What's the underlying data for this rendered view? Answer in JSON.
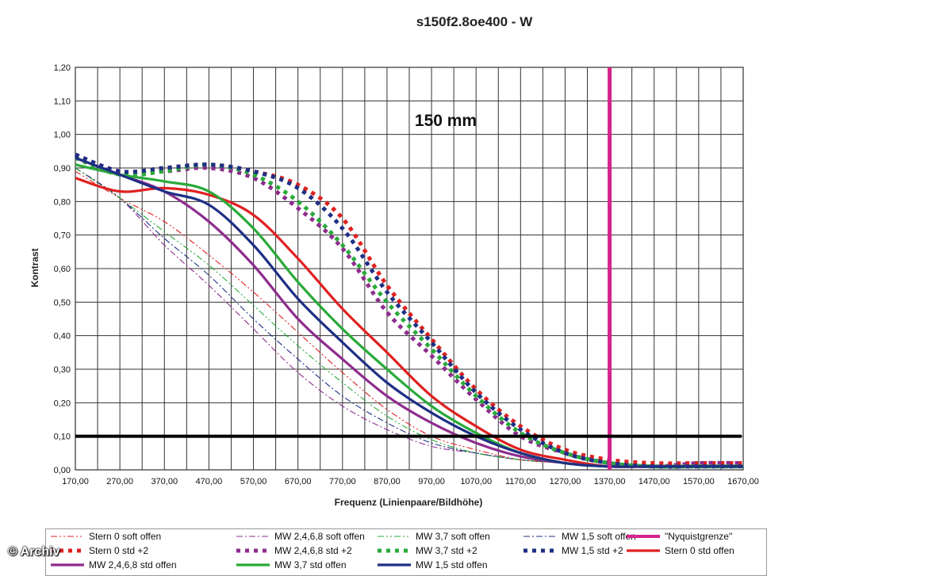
{
  "chart_data": {
    "type": "line",
    "title": "s150f2.8oe400 - W",
    "annotation": "150 mm",
    "xlabel": "Frequenz (Linienpaare/Bildhöhe)",
    "ylabel": "Kontrast",
    "xlim": [
      170,
      1670
    ],
    "ylim": [
      0,
      1.2
    ],
    "xticks": [
      "170,00",
      "270,00",
      "370,00",
      "470,00",
      "570,00",
      "670,00",
      "770,00",
      "870,00",
      "970,00",
      "1070,00",
      "1170,00",
      "1270,00",
      "1370,00",
      "1470,00",
      "1570,00",
      "1670,00"
    ],
    "yticks": [
      "0,00",
      "0,10",
      "0,20",
      "0,30",
      "0,40",
      "0,50",
      "0,60",
      "0,70",
      "0,80",
      "0,90",
      "1,00",
      "1,10",
      "1,20"
    ],
    "x": [
      170,
      270,
      370,
      470,
      570,
      670,
      770,
      870,
      970,
      1070,
      1170,
      1270,
      1370,
      1470,
      1570,
      1670
    ],
    "series": [
      {
        "name": "Stern 0 soft offen",
        "color": "#e02020",
        "style": "dashdotdot",
        "values": [
          0.89,
          0.81,
          0.74,
          0.64,
          0.53,
          0.41,
          0.29,
          0.18,
          0.1,
          0.06,
          0.03,
          0.02,
          0.01,
          0.01,
          0.01,
          0.01
        ]
      },
      {
        "name": "MW 2,4,6,8 soft offen",
        "color": "#8e2c8e",
        "style": "dashdot",
        "values": [
          0.9,
          0.81,
          0.67,
          0.55,
          0.42,
          0.29,
          0.19,
          0.12,
          0.07,
          0.05,
          0.03,
          0.02,
          0.01,
          0.01,
          0.01,
          0.01
        ]
      },
      {
        "name": "MW 3,7 soft offen",
        "color": "#2aaa3a",
        "style": "dashdotdot",
        "values": [
          0.9,
          0.81,
          0.71,
          0.61,
          0.49,
          0.37,
          0.26,
          0.16,
          0.09,
          0.05,
          0.03,
          0.02,
          0.01,
          0.01,
          0.01,
          0.01
        ]
      },
      {
        "name": "MW 1,5 soft offen",
        "color": "#1e2f85",
        "style": "dashdot",
        "values": [
          0.9,
          0.81,
          0.69,
          0.58,
          0.45,
          0.33,
          0.22,
          0.14,
          0.08,
          0.05,
          0.03,
          0.02,
          0.01,
          0.01,
          0.01,
          0.01
        ]
      },
      {
        "name": "\"Nyquistgrenze\"",
        "color": "#d6228c",
        "style": "vertical",
        "at": 1370
      },
      {
        "name": "Stern 0 std +2",
        "color": "#e02020",
        "style": "dashed",
        "values": [
          0.94,
          0.89,
          0.9,
          0.91,
          0.89,
          0.85,
          0.75,
          0.55,
          0.39,
          0.24,
          0.13,
          0.06,
          0.03,
          0.02,
          0.02,
          0.02
        ]
      },
      {
        "name": "MW 2,4,6,8 std +2",
        "color": "#8e2c8e",
        "style": "dashed",
        "values": [
          0.94,
          0.89,
          0.89,
          0.9,
          0.87,
          0.78,
          0.66,
          0.47,
          0.34,
          0.21,
          0.1,
          0.05,
          0.02,
          0.01,
          0.02,
          0.02
        ]
      },
      {
        "name": "MW 3,7 std +2",
        "color": "#2aaa3a",
        "style": "dashed",
        "values": [
          0.93,
          0.88,
          0.89,
          0.91,
          0.88,
          0.8,
          0.67,
          0.5,
          0.36,
          0.22,
          0.11,
          0.05,
          0.02,
          0.01,
          0.01,
          0.01
        ]
      },
      {
        "name": "MW 1,5 std +2",
        "color": "#1e2f85",
        "style": "dashed",
        "values": [
          0.94,
          0.89,
          0.9,
          0.91,
          0.89,
          0.84,
          0.72,
          0.53,
          0.38,
          0.23,
          0.12,
          0.05,
          0.02,
          0.01,
          0.01,
          0.01
        ]
      },
      {
        "name": "Stern 0 std offen",
        "color": "#e02020",
        "style": "solid",
        "values": [
          0.87,
          0.83,
          0.84,
          0.82,
          0.76,
          0.63,
          0.48,
          0.35,
          0.22,
          0.13,
          0.06,
          0.03,
          0.01,
          0.01,
          0.01,
          0.01
        ]
      },
      {
        "name": "MW 2,4,6,8 std offen",
        "color": "#8e2c8e",
        "style": "solid",
        "values": [
          0.93,
          0.88,
          0.83,
          0.74,
          0.61,
          0.45,
          0.33,
          0.22,
          0.14,
          0.08,
          0.04,
          0.02,
          0.01,
          0.01,
          0.01,
          0.01
        ]
      },
      {
        "name": "MW 3,7 std offen",
        "color": "#2aaa3a",
        "style": "solid",
        "values": [
          0.91,
          0.88,
          0.86,
          0.83,
          0.72,
          0.56,
          0.42,
          0.3,
          0.19,
          0.11,
          0.05,
          0.02,
          0.01,
          0.01,
          0.01,
          0.01
        ]
      },
      {
        "name": "MW 1,5 std offen",
        "color": "#1e2f85",
        "style": "solid",
        "values": [
          0.93,
          0.88,
          0.83,
          0.79,
          0.67,
          0.51,
          0.38,
          0.26,
          0.17,
          0.1,
          0.05,
          0.02,
          0.01,
          0.01,
          0.01,
          0.01
        ]
      }
    ],
    "reference_line": {
      "y": 0.1,
      "color": "#000000"
    },
    "grid": true,
    "legend_position": "bottom"
  },
  "watermark": "© Archiv"
}
